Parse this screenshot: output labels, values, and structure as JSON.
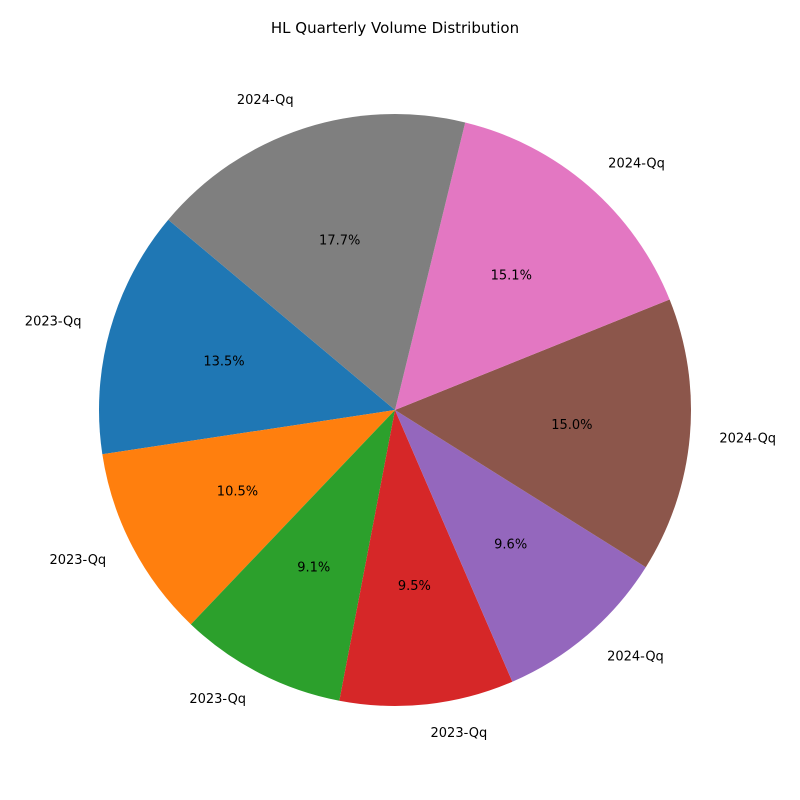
{
  "chart_data": {
    "type": "pie",
    "title": "HL Quarterly Volume Distribution",
    "labels": [
      "2023-Qq",
      "2023-Qq",
      "2023-Qq",
      "2023-Qq",
      "2024-Qq",
      "2024-Qq",
      "2024-Qq",
      "2024-Qq"
    ],
    "values": [
      13.5,
      10.5,
      9.1,
      9.5,
      9.6,
      15.0,
      15.1,
      17.7
    ],
    "percent_labels": [
      "13.5%",
      "10.5%",
      "9.1%",
      "9.5%",
      "9.6%",
      "15.0%",
      "15.1%",
      "17.7%"
    ],
    "colors": [
      "#1f77b4",
      "#ff7f0e",
      "#2ca02c",
      "#d62728",
      "#9467bd",
      "#8c564b",
      "#e377c2",
      "#7f7f7f"
    ],
    "start_angle_deg": 140,
    "direction": "counterclockwise"
  }
}
